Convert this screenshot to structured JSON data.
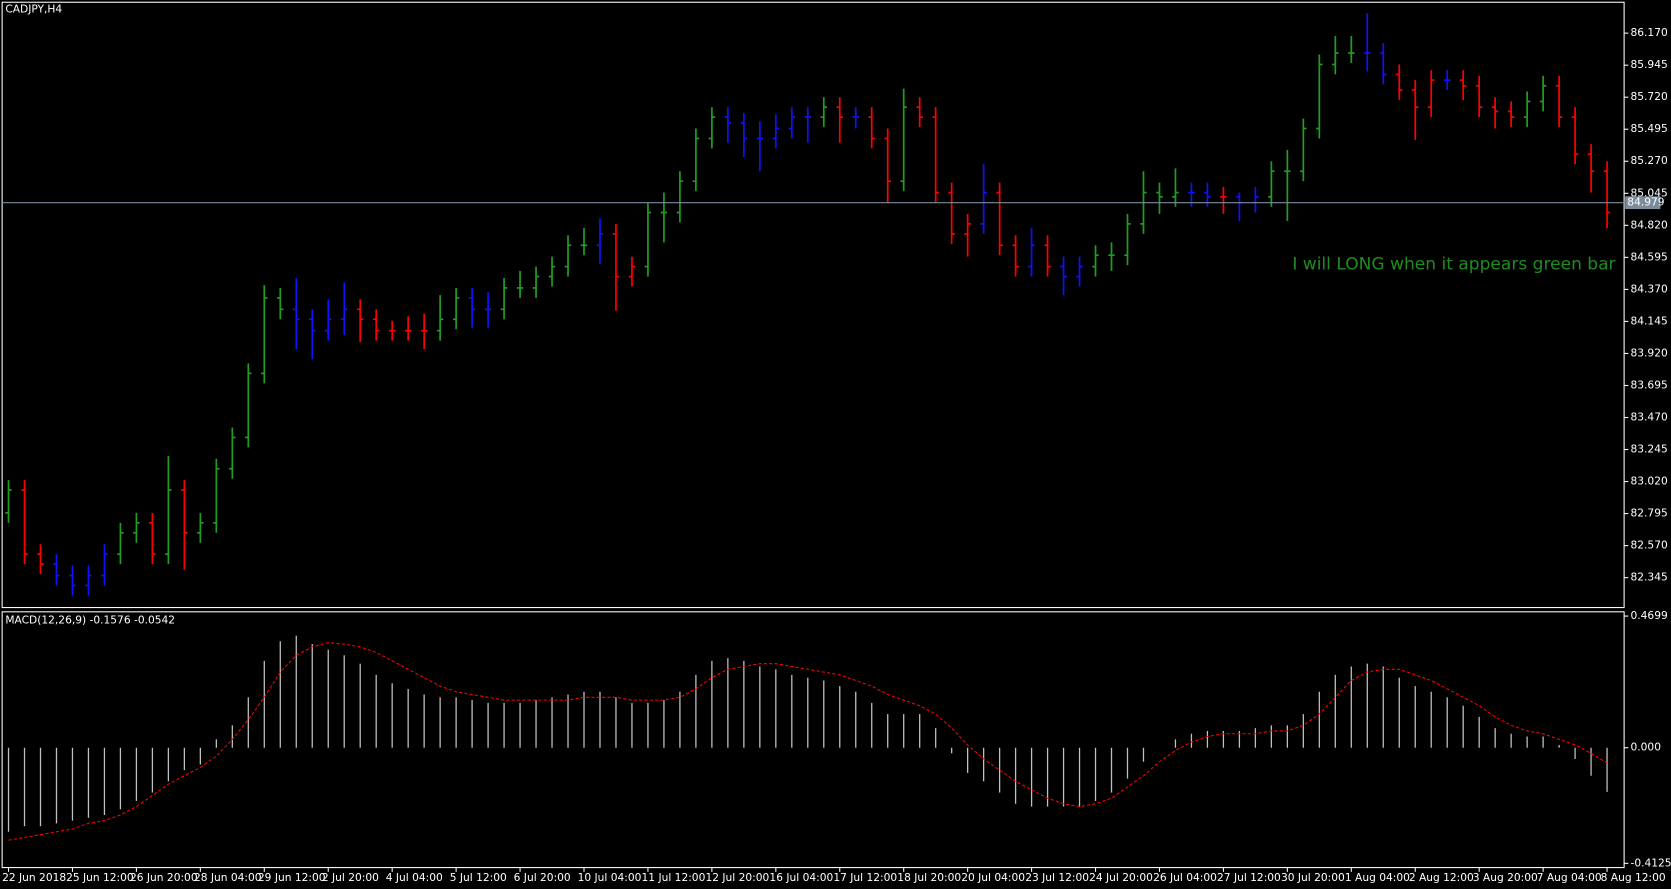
{
  "chart_data": [
    {
      "type": "ohlc",
      "title": "CADJPY,H4",
      "open": [
        82.8,
        82.96,
        82.51,
        82.44,
        82.36,
        82.29,
        82.36,
        82.51,
        82.66,
        82.73,
        82.51,
        82.96,
        82.66,
        82.73,
        83.11,
        83.33,
        83.78,
        84.31,
        84.23,
        84.16,
        84.08,
        84.16,
        84.23,
        84.16,
        84.08,
        84.08,
        84.08,
        84.08,
        84.16,
        84.31,
        84.23,
        84.23,
        84.38,
        84.38,
        84.46,
        84.53,
        84.68,
        84.68,
        84.76,
        84.46,
        84.53,
        84.91,
        84.91,
        85.13,
        85.43,
        85.58,
        85.54,
        85.43,
        85.43,
        85.5,
        85.58,
        85.58,
        85.65,
        85.58,
        85.58,
        85.43,
        85.13,
        85.65,
        85.58,
        85.05,
        84.76,
        84.83,
        85.05,
        84.68,
        84.53,
        84.68,
        84.53,
        84.46,
        84.53,
        84.61,
        84.61,
        84.83,
        85.05,
        85.02,
        85.05,
        85.05,
        85.02,
        85.02,
        84.98,
        85.02,
        85.2,
        85.2,
        85.5,
        85.95,
        86.03,
        86.03,
        86.03,
        85.88,
        85.77,
        85.65,
        85.84,
        85.84,
        85.8,
        85.65,
        85.62,
        85.58,
        85.69,
        85.8,
        85.58,
        85.32,
        85.2
      ],
      "high": [
        83.03,
        83.03,
        82.58,
        82.51,
        82.43,
        82.43,
        82.58,
        82.73,
        82.8,
        82.8,
        83.2,
        83.03,
        82.8,
        83.18,
        83.4,
        83.85,
        84.4,
        84.38,
        84.45,
        84.23,
        84.3,
        84.42,
        84.3,
        84.23,
        84.15,
        84.18,
        84.2,
        84.33,
        84.38,
        84.38,
        84.35,
        84.45,
        84.5,
        84.53,
        84.6,
        84.75,
        84.8,
        84.87,
        84.83,
        84.6,
        84.98,
        85.05,
        85.2,
        85.5,
        85.65,
        85.65,
        85.61,
        85.55,
        85.6,
        85.65,
        85.65,
        85.72,
        85.72,
        85.65,
        85.65,
        85.5,
        85.78,
        85.72,
        85.65,
        85.12,
        84.9,
        85.25,
        85.12,
        84.75,
        84.8,
        84.75,
        84.6,
        84.6,
        84.68,
        84.7,
        84.9,
        85.2,
        85.12,
        85.22,
        85.12,
        85.12,
        85.09,
        85.05,
        85.09,
        85.27,
        85.35,
        85.57,
        86.02,
        86.15,
        86.15,
        86.31,
        86.1,
        85.95,
        85.84,
        85.91,
        85.91,
        85.91,
        85.87,
        85.72,
        85.69,
        85.76,
        85.87,
        85.87,
        85.65,
        85.39,
        85.27
      ],
      "low": [
        82.73,
        82.44,
        82.37,
        82.29,
        82.22,
        82.22,
        82.29,
        82.44,
        82.59,
        82.44,
        82.44,
        82.4,
        82.59,
        82.66,
        83.04,
        83.26,
        83.71,
        84.16,
        83.95,
        83.88,
        84.01,
        84.05,
        84.0,
        84.01,
        84.01,
        84.01,
        83.95,
        84.01,
        84.09,
        84.1,
        84.1,
        84.16,
        84.31,
        84.31,
        84.39,
        84.46,
        84.61,
        84.55,
        84.22,
        84.39,
        84.46,
        84.7,
        84.84,
        85.06,
        85.36,
        85.4,
        85.3,
        85.2,
        85.36,
        85.43,
        85.4,
        85.51,
        85.4,
        85.5,
        85.36,
        84.98,
        85.06,
        85.51,
        84.98,
        84.69,
        84.6,
        84.76,
        84.61,
        84.46,
        84.46,
        84.46,
        84.33,
        84.39,
        84.46,
        84.5,
        84.54,
        84.76,
        84.9,
        84.95,
        84.95,
        84.95,
        84.9,
        84.85,
        84.91,
        84.95,
        84.85,
        85.13,
        85.43,
        85.88,
        85.96,
        85.9,
        85.81,
        85.7,
        85.42,
        85.58,
        85.77,
        85.7,
        85.58,
        85.5,
        85.51,
        85.51,
        85.62,
        85.51,
        85.25,
        85.05,
        84.8
      ],
      "close": [
        82.96,
        82.51,
        82.44,
        82.36,
        82.29,
        82.36,
        82.51,
        82.66,
        82.73,
        82.51,
        82.96,
        82.66,
        82.73,
        83.11,
        83.33,
        83.78,
        84.31,
        84.23,
        84.16,
        84.08,
        84.16,
        84.23,
        84.16,
        84.08,
        84.08,
        84.08,
        84.08,
        84.16,
        84.31,
        84.23,
        84.23,
        84.38,
        84.38,
        84.46,
        84.53,
        84.68,
        84.68,
        84.76,
        84.46,
        84.53,
        84.91,
        84.91,
        85.13,
        85.43,
        85.58,
        85.54,
        85.43,
        85.43,
        85.5,
        85.58,
        85.58,
        85.65,
        85.58,
        85.58,
        85.43,
        85.13,
        85.65,
        85.58,
        85.05,
        84.76,
        84.83,
        85.05,
        84.68,
        84.53,
        84.68,
        84.53,
        84.46,
        84.53,
        84.61,
        84.61,
        84.83,
        85.05,
        85.02,
        85.05,
        85.05,
        85.02,
        85.02,
        84.98,
        85.02,
        85.2,
        85.2,
        85.5,
        85.95,
        86.03,
        86.03,
        86.03,
        85.88,
        85.77,
        85.65,
        85.84,
        85.84,
        85.8,
        85.65,
        85.62,
        85.58,
        85.69,
        85.8,
        85.58,
        85.32,
        85.2,
        84.91
      ],
      "bar_colors": [
        "g",
        "r",
        "r",
        "b",
        "b",
        "b",
        "b",
        "g",
        "g",
        "r",
        "g",
        "r",
        "g",
        "g",
        "g",
        "g",
        "g",
        "g",
        "b",
        "b",
        "b",
        "b",
        "r",
        "r",
        "r",
        "r",
        "r",
        "g",
        "g",
        "b",
        "b",
        "g",
        "g",
        "g",
        "g",
        "g",
        "g",
        "b",
        "r",
        "r",
        "g",
        "g",
        "g",
        "g",
        "g",
        "b",
        "b",
        "b",
        "b",
        "b",
        "b",
        "g",
        "r",
        "b",
        "r",
        "r",
        "g",
        "r",
        "r",
        "r",
        "r",
        "b",
        "r",
        "r",
        "b",
        "r",
        "b",
        "b",
        "g",
        "g",
        "g",
        "g",
        "g",
        "g",
        "b",
        "b",
        "r",
        "b",
        "b",
        "g",
        "g",
        "g",
        "g",
        "g",
        "g",
        "b",
        "b",
        "r",
        "r",
        "r",
        "b",
        "r",
        "r",
        "r",
        "r",
        "g",
        "g",
        "r",
        "r",
        "r",
        "r"
      ],
      "palette": {
        "g": "#1f9e1f",
        "r": "#ff0000",
        "b": "#1010ff"
      },
      "xlim": [
        0,
        100
      ],
      "ylim": [
        82.135,
        86.387
      ],
      "yticks": [
        82.345,
        {
          "value": 82.57,
          "label": "82.570"
        },
        82.795,
        {
          "value": 83.02,
          "label": "83.020"
        },
        83.245,
        {
          "value": 83.47,
          "label": "83.470"
        },
        83.695,
        {
          "value": 83.92,
          "label": "83.920"
        },
        84.145,
        {
          "value": 84.37,
          "label": "84.370"
        },
        84.595,
        {
          "value": 84.82,
          "label": "84.820"
        },
        85.045,
        {
          "value": 85.27,
          "label": "85.270"
        },
        85.495,
        {
          "value": 85.72,
          "label": "85.720"
        },
        85.945,
        {
          "value": 86.17,
          "label": "86.170"
        }
      ],
      "xticks": [
        {
          "value": 0,
          "label": "22 Jun 2018"
        },
        {
          "value": 4,
          "label": "25 Jun 12:00"
        },
        {
          "value": 8,
          "label": "26 Jun 20:00"
        },
        {
          "value": 12,
          "label": "28 Jun 04:00"
        },
        {
          "value": 16,
          "label": "29 Jun 12:00"
        },
        {
          "value": 20,
          "label": "2 Jul 20:00"
        },
        {
          "value": 24,
          "label": "4 Jul 04:00"
        },
        {
          "value": 28,
          "label": "5 Jul 12:00"
        },
        {
          "value": 32,
          "label": "6 Jul 20:00"
        },
        {
          "value": 36,
          "label": "10 Jul 04:00"
        },
        {
          "value": 40,
          "label": "11 Jul 12:00"
        },
        {
          "value": 44,
          "label": "12 Jul 20:00"
        },
        {
          "value": 48,
          "label": "16 Jul 04:00"
        },
        {
          "value": 52,
          "label": "17 Jul 12:00"
        },
        {
          "value": 56,
          "label": "18 Jul 20:00"
        },
        {
          "value": 60,
          "label": "20 Jul 04:00"
        },
        {
          "value": 64,
          "label": "23 Jul 12:00"
        },
        {
          "value": 68,
          "label": "24 Jul 20:00"
        },
        {
          "value": 72,
          "label": "26 Jul 04:00"
        },
        {
          "value": 76,
          "label": "27 Jul 12:00"
        },
        {
          "value": 80,
          "label": "30 Jul 20:00"
        },
        {
          "value": 84,
          "label": "1 Aug 04:00"
        },
        {
          "value": 88,
          "label": "2 Aug 12:00"
        },
        {
          "value": 92,
          "label": "3 Aug 20:00"
        },
        {
          "value": 96,
          "label": "7 Aug 04:00"
        },
        {
          "value": 100,
          "label": "8 Aug 12:00"
        }
      ],
      "current_price": 84.979,
      "annotation": {
        "text": "I will LONG when it appears green bar",
        "color": "#1f8c1f"
      }
    },
    {
      "type": "macd",
      "title": "MACD(12,26,9) -0.1576 -0.0542",
      "histogram": [
        -0.3,
        -0.28,
        -0.28,
        -0.27,
        -0.26,
        -0.25,
        -0.24,
        -0.22,
        -0.19,
        -0.16,
        -0.12,
        -0.08,
        -0.06,
        0.03,
        0.08,
        0.18,
        0.31,
        0.38,
        0.4,
        0.37,
        0.35,
        0.33,
        0.3,
        0.26,
        0.23,
        0.21,
        0.19,
        0.18,
        0.18,
        0.17,
        0.16,
        0.16,
        0.16,
        0.17,
        0.18,
        0.19,
        0.2,
        0.2,
        0.18,
        0.16,
        0.16,
        0.17,
        0.2,
        0.26,
        0.31,
        0.32,
        0.31,
        0.29,
        0.28,
        0.26,
        0.25,
        0.24,
        0.22,
        0.2,
        0.16,
        0.12,
        0.12,
        0.12,
        0.07,
        -0.02,
        -0.09,
        -0.12,
        -0.16,
        -0.2,
        -0.21,
        -0.21,
        -0.21,
        -0.21,
        -0.19,
        -0.16,
        -0.11,
        -0.05,
        0.0,
        0.03,
        0.05,
        0.06,
        0.06,
        0.06,
        0.07,
        0.08,
        0.08,
        0.12,
        0.2,
        0.26,
        0.29,
        0.3,
        0.29,
        0.25,
        0.22,
        0.2,
        0.18,
        0.15,
        0.11,
        0.07,
        0.05,
        0.04,
        0.04,
        0.01,
        -0.04,
        -0.1,
        -0.1576
      ],
      "signal": [
        -0.33,
        -0.32,
        -0.31,
        -0.3,
        -0.29,
        -0.27,
        -0.26,
        -0.24,
        -0.21,
        -0.17,
        -0.13,
        -0.1,
        -0.07,
        -0.03,
        0.03,
        0.1,
        0.18,
        0.27,
        0.33,
        0.36,
        0.375,
        0.37,
        0.36,
        0.34,
        0.31,
        0.28,
        0.25,
        0.22,
        0.2,
        0.19,
        0.18,
        0.17,
        0.17,
        0.17,
        0.17,
        0.17,
        0.18,
        0.18,
        0.18,
        0.17,
        0.17,
        0.17,
        0.18,
        0.21,
        0.25,
        0.28,
        0.29,
        0.3,
        0.3,
        0.29,
        0.28,
        0.27,
        0.26,
        0.24,
        0.22,
        0.19,
        0.17,
        0.15,
        0.12,
        0.07,
        0.01,
        -0.04,
        -0.08,
        -0.12,
        -0.15,
        -0.18,
        -0.2,
        -0.21,
        -0.2,
        -0.18,
        -0.14,
        -0.1,
        -0.05,
        -0.01,
        0.02,
        0.04,
        0.05,
        0.05,
        0.05,
        0.06,
        0.06,
        0.08,
        0.12,
        0.18,
        0.24,
        0.27,
        0.28,
        0.28,
        0.26,
        0.24,
        0.21,
        0.18,
        0.15,
        0.11,
        0.08,
        0.06,
        0.05,
        0.03,
        0.01,
        -0.02,
        -0.0542
      ],
      "histogram_color": "#c0c0c0",
      "signal_color": "#ff0000",
      "ylim": [
        -0.4125,
        0.4699
      ],
      "yticks": [
        0.4699,
        {
          "value": 0,
          "label": "0.000"
        },
        -0.4125
      ]
    }
  ]
}
